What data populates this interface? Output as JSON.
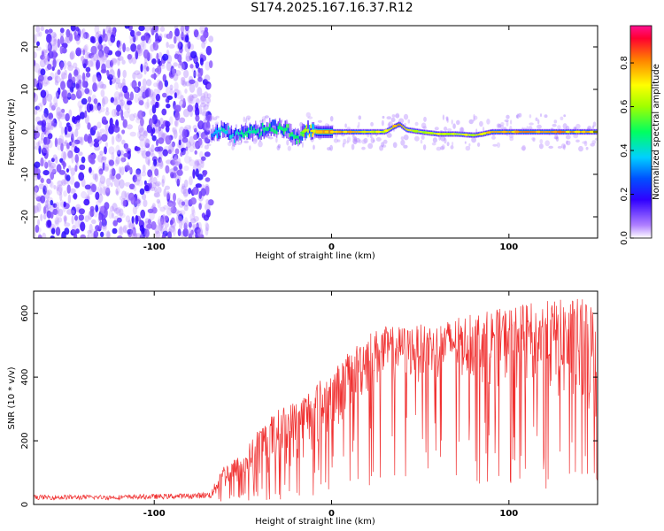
{
  "title": "S174.2025.167.16.37.R12",
  "chart_data": [
    {
      "type": "heatmap",
      "xlabel": "Height of straight line (km)",
      "ylabel": "Frequency (Hz)",
      "xlim": [
        -168,
        150
      ],
      "ylim": [
        -25,
        25
      ],
      "x_ticks": [
        -100,
        0,
        100
      ],
      "x_tick_labels": [
        "-100",
        "0",
        "100"
      ],
      "y_ticks": [
        -20,
        -10,
        0,
        10,
        20
      ],
      "y_tick_labels": [
        "-20",
        "-10",
        "0",
        "10",
        "20"
      ],
      "colorbar": {
        "label": "Normalized spectral amplitude",
        "range": [
          0,
          0.97
        ],
        "ticks": [
          0.0,
          0.2,
          0.4,
          0.6,
          0.8
        ],
        "tick_labels": [
          "0.0",
          "0.2",
          "0.4",
          "0.6",
          "0.8"
        ]
      },
      "noise_region_x": [
        -168,
        -70
      ],
      "ridge": {
        "x": [
          -68,
          -62,
          -55,
          -48,
          -42,
          -36,
          -30,
          -25,
          -20,
          -17,
          -14,
          -8,
          0,
          10,
          20,
          30,
          35,
          38,
          42,
          50,
          60,
          70,
          80,
          85,
          90,
          100,
          110,
          120,
          130,
          140,
          150
        ],
        "freq": [
          -1,
          0.5,
          -1,
          0,
          0,
          1,
          1,
          0.5,
          -1.5,
          -0.5,
          0.5,
          0,
          0,
          0,
          0,
          0,
          1.2,
          1.8,
          0.5,
          0,
          -0.5,
          -0.5,
          -0.8,
          -0.5,
          0,
          0,
          0,
          0,
          0,
          0,
          0
        ],
        "amplitude": [
          0.3,
          0.45,
          0.4,
          0.5,
          0.45,
          0.5,
          0.5,
          0.55,
          0.5,
          0.55,
          0.7,
          0.8,
          0.85,
          0.8,
          0.75,
          0.7,
          0.8,
          0.85,
          0.75,
          0.7,
          0.75,
          0.7,
          0.75,
          0.8,
          0.8,
          0.8,
          0.85,
          0.8,
          0.85,
          0.8,
          0.8
        ]
      }
    },
    {
      "type": "line",
      "color": "#f03030",
      "xlabel": "Height of straight line (km)",
      "ylabel": "SNR (10 * v/v)",
      "xlim": [
        -168,
        150
      ],
      "ylim": [
        0,
        670
      ],
      "x_ticks": [
        -100,
        0,
        100
      ],
      "x_tick_labels": [
        "-100",
        "0",
        "100"
      ],
      "y_ticks": [
        0,
        200,
        400,
        600
      ],
      "y_tick_labels": [
        "0",
        "200",
        "400",
        "600"
      ],
      "envelope_x": [
        -168,
        -120,
        -80,
        -68,
        -62,
        -50,
        -40,
        -30,
        -20,
        -10,
        0,
        10,
        20,
        30,
        40,
        60,
        80,
        100,
        120,
        140,
        150
      ],
      "envelope_upper": [
        30,
        30,
        35,
        40,
        120,
        160,
        250,
        300,
        330,
        380,
        420,
        480,
        540,
        560,
        560,
        570,
        600,
        620,
        640,
        650,
        640
      ],
      "envelope_lower": [
        15,
        15,
        18,
        20,
        40,
        60,
        80,
        100,
        110,
        150,
        200,
        280,
        330,
        360,
        380,
        380,
        380,
        360,
        330,
        250,
        200
      ]
    }
  ]
}
